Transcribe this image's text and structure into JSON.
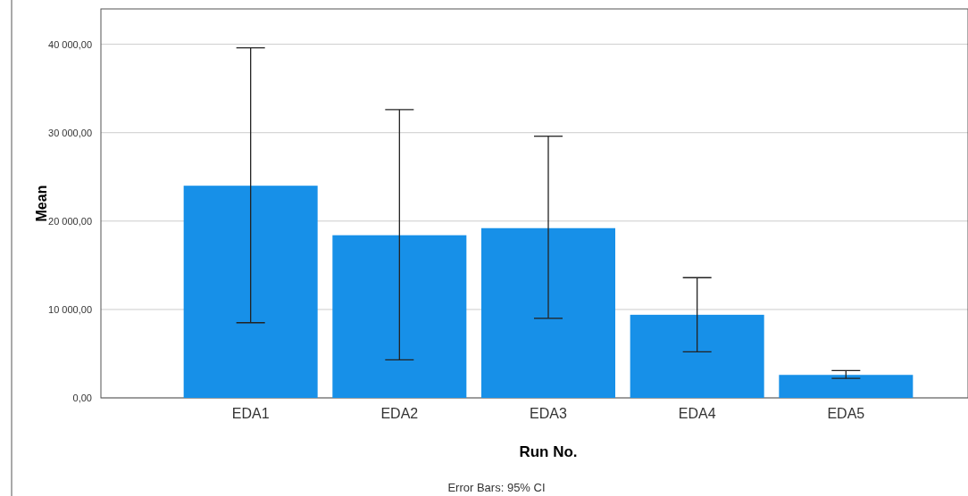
{
  "chart_data": {
    "type": "bar",
    "xlabel": "Run No.",
    "ylabel": "Mean",
    "categories": [
      "EDA1",
      "EDA2",
      "EDA3",
      "EDA4",
      "EDA5"
    ],
    "values": [
      24000,
      18400,
      19200,
      9400,
      2600
    ],
    "errors": [
      [
        8500,
        39600
      ],
      [
        4300,
        32600
      ],
      [
        9000,
        29600
      ],
      [
        5200,
        13600
      ],
      [
        2200,
        3100
      ]
    ],
    "color": "#1790e8",
    "ylim": [
      0,
      44000
    ],
    "yticks": [
      {
        "value": 0,
        "label": "0,00"
      },
      {
        "value": 10000,
        "label": "10 000,00"
      },
      {
        "value": 20000,
        "label": "20 000,00"
      },
      {
        "value": 30000,
        "label": "30 000,00"
      },
      {
        "value": 40000,
        "label": "40 000,00"
      }
    ],
    "grid": "y",
    "annotations": [
      "Error Bars: 95% CI"
    ]
  }
}
